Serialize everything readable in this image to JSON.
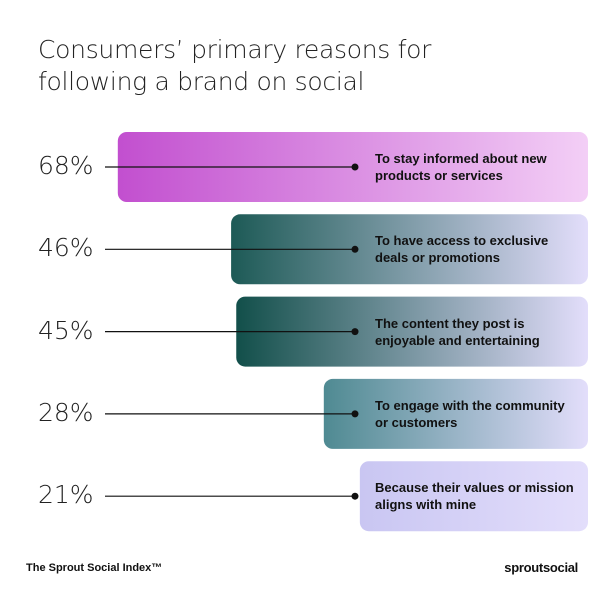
{
  "chart_data": {
    "type": "bar",
    "orientation": "horizontal",
    "title": "Consumers’ primary reasons for following a brand on social",
    "categories": [
      "To stay informed about new products or services",
      "To have access to exclusive deals or promotions",
      "The content they post is enjoyable and entertaining",
      "To engage with the community or customers",
      "Because their values or mission aligns with mine"
    ],
    "values": [
      68,
      46,
      45,
      28,
      21
    ],
    "value_labels": [
      "68%",
      "46%",
      "45%",
      "28%",
      "21%"
    ],
    "colors": [
      "#c24fcf",
      "#1d5a56",
      "#124f4a",
      "#4f8a92",
      "#c9c6f2"
    ],
    "source": "The Sprout Social Index™",
    "brand": "sproutsocial"
  }
}
